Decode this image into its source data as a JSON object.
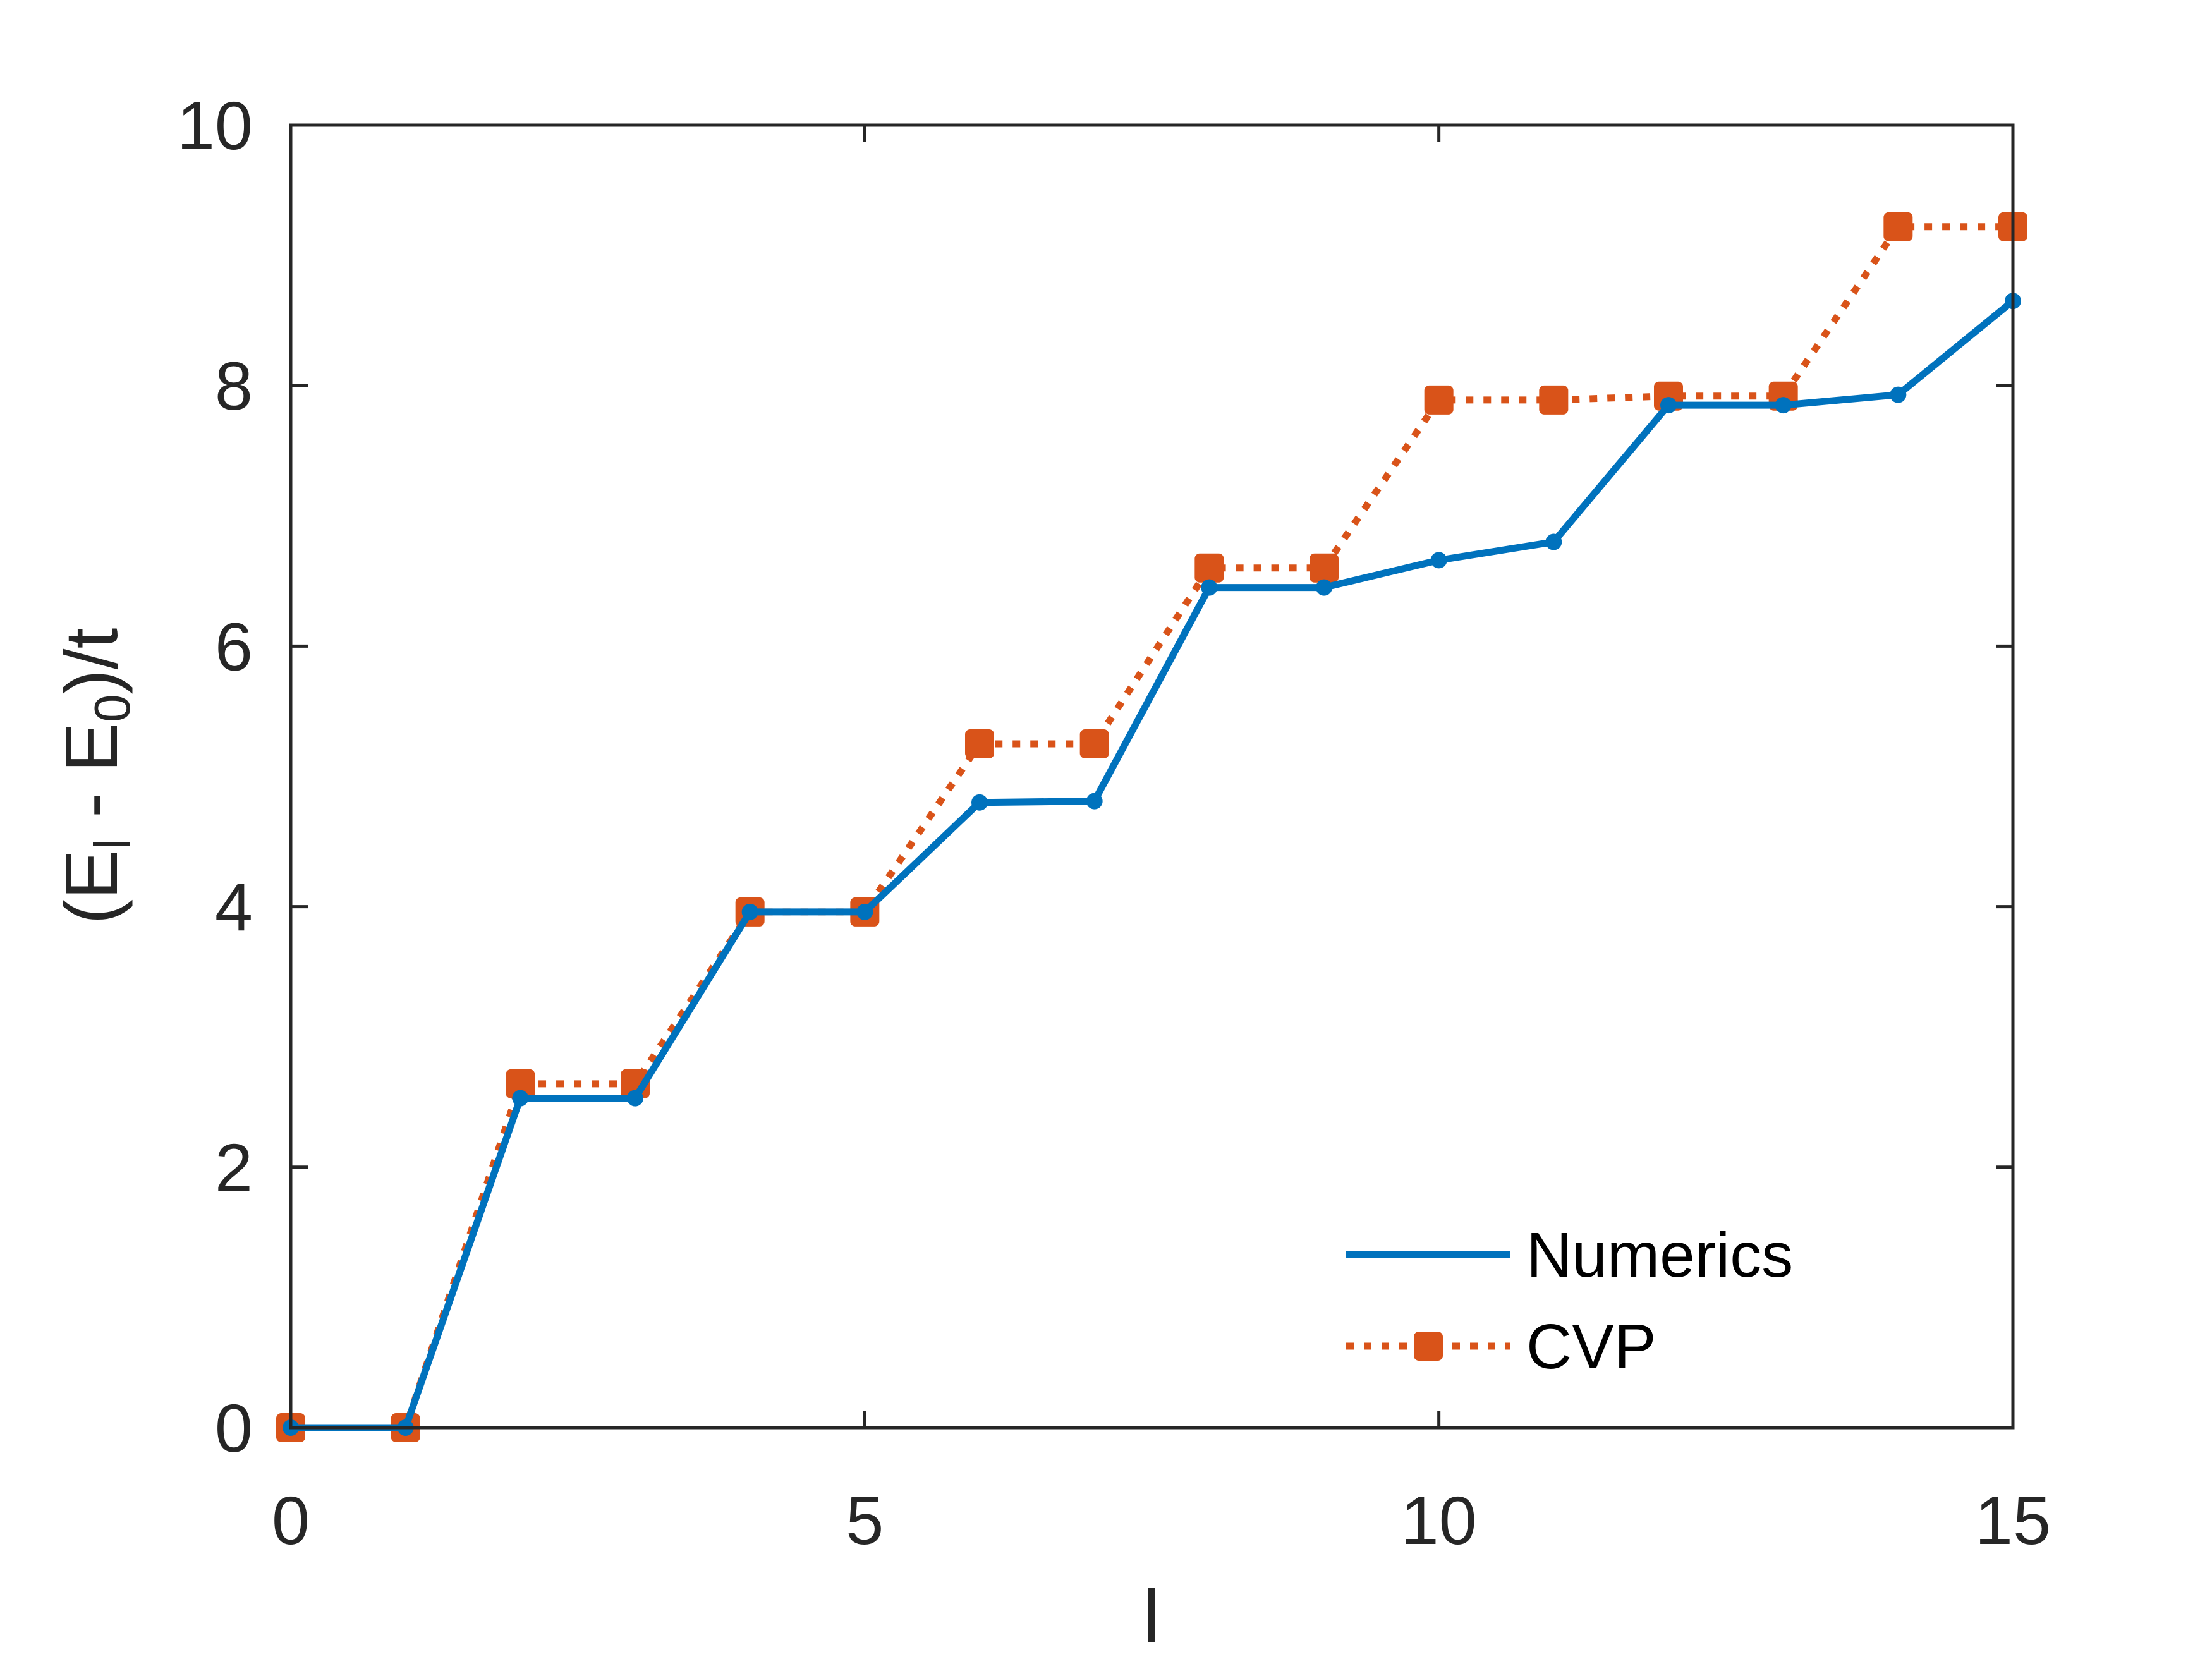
{
  "chart_data": {
    "type": "line",
    "title": "",
    "xlabel": "l",
    "ylabel": {
      "main": "(E",
      "sub1": "l",
      "middle": " - E",
      "sub2": "0",
      "tail": ")/t"
    },
    "xlim": [
      0,
      15
    ],
    "ylim": [
      0,
      10
    ],
    "xticks": [
      0,
      5,
      10,
      15
    ],
    "xtick_labels": [
      "0",
      "5",
      "10",
      "15"
    ],
    "yticks": [
      0,
      2,
      4,
      6,
      8,
      10
    ],
    "ytick_labels": [
      "0",
      "2",
      "4",
      "6",
      "8",
      "10"
    ],
    "grid": false,
    "legend_position": "bottom-right",
    "x": [
      0,
      1,
      2,
      3,
      4,
      5,
      6,
      7,
      8,
      9,
      10,
      11,
      12,
      13,
      14,
      15
    ],
    "series": [
      {
        "name": "Numerics",
        "color": "#0072BD",
        "style": "solid",
        "marker": "circle",
        "values": [
          0,
          0,
          2.53,
          2.53,
          3.96,
          3.96,
          4.8,
          4.81,
          6.45,
          6.45,
          6.66,
          6.8,
          7.85,
          7.85,
          7.93,
          8.65
        ]
      },
      {
        "name": "CVP",
        "color": "#D95319",
        "style": "dotted",
        "marker": "square",
        "values": [
          0,
          0,
          2.64,
          2.64,
          3.96,
          3.96,
          5.25,
          5.25,
          6.6,
          6.6,
          7.89,
          7.89,
          7.92,
          7.92,
          9.22,
          9.22
        ]
      }
    ]
  }
}
